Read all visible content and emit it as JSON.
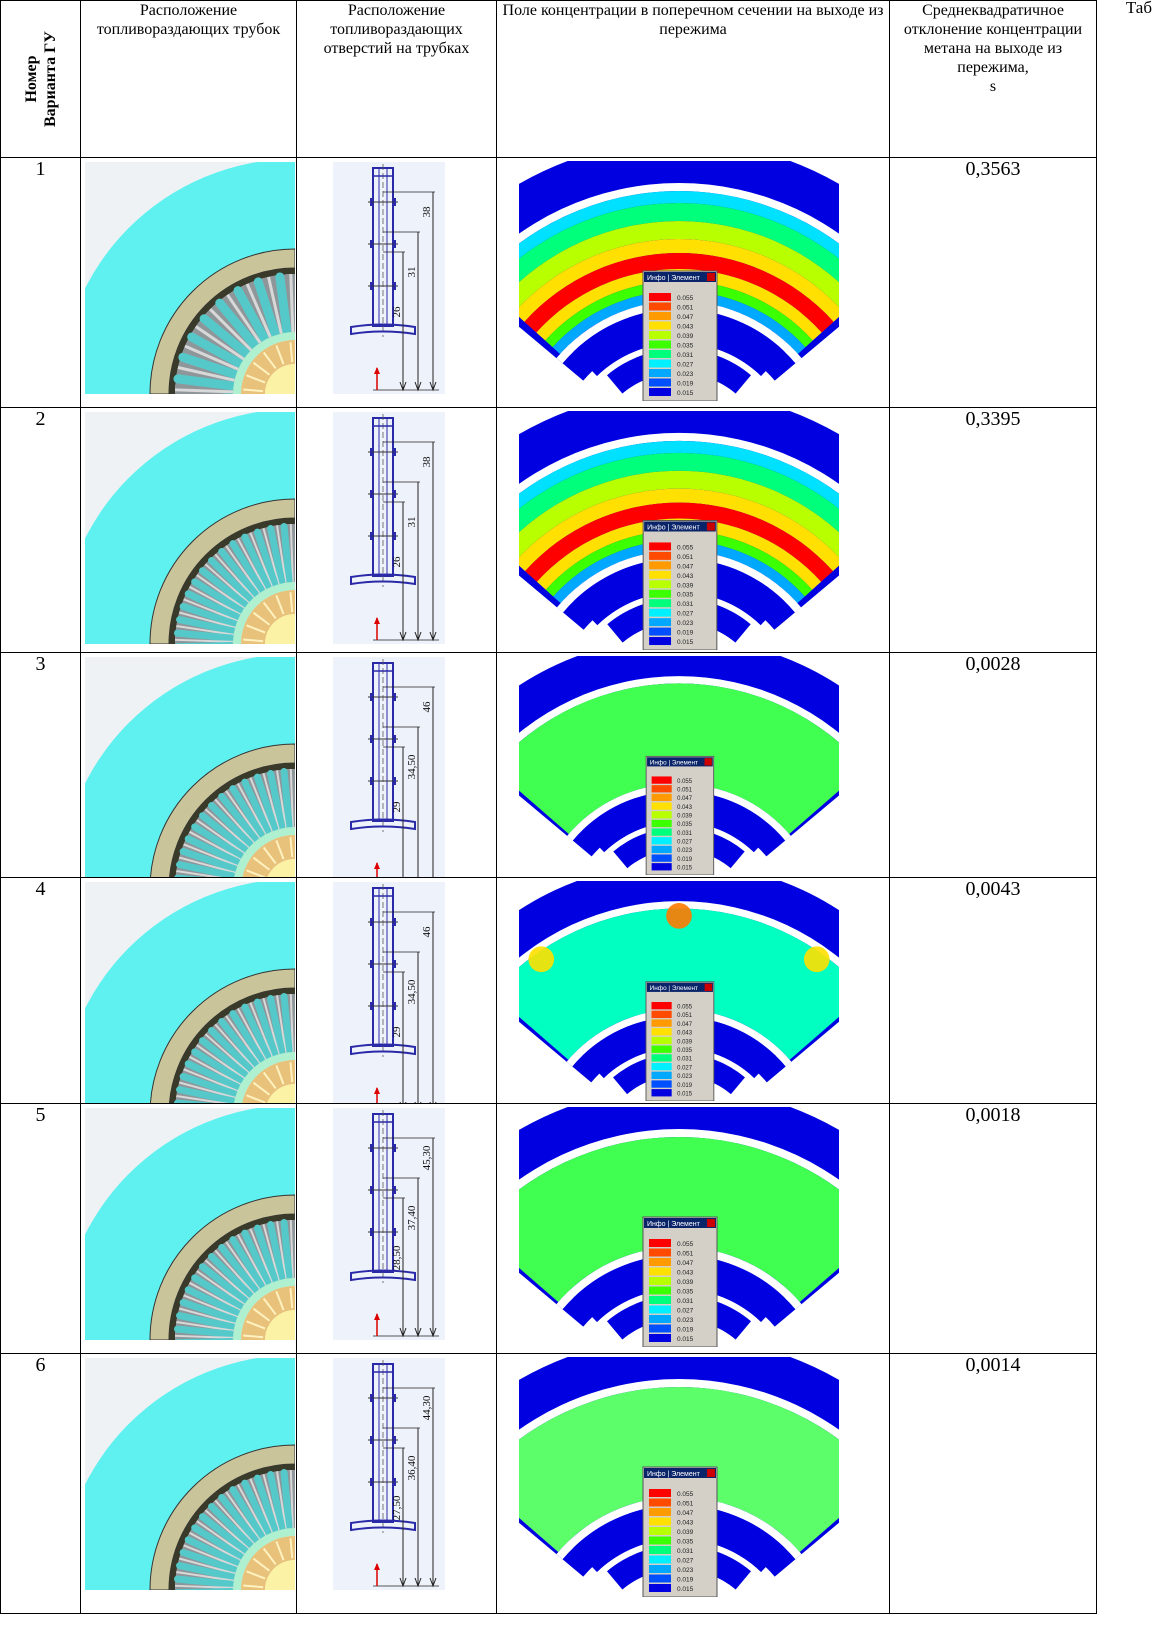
{
  "corner_label": "Таб",
  "headers": {
    "variant_number_line1": "Номер",
    "variant_number_line2": "Варианта ГУ",
    "tube_layout": "Расположение топливораздающих трубок",
    "hole_layout": "Расположение топливораздающих отверстий на трубках",
    "concentration_field": "Поле концентрации в поперечном сечении на выходе из пережима",
    "rms_deviation": "Среднеквадратичное отклонение концентрации метана на выходе из пережима,",
    "rms_symbol": "s"
  },
  "legend_window_title": "Инфо | Элемент",
  "legend_values": [
    "0.055",
    "0.051",
    "0.047",
    "0.043",
    "0.039",
    "0.035",
    "0.031",
    "0.027",
    "0.023",
    "0.019",
    "0.015"
  ],
  "legend_colors": [
    "#ff0000",
    "#ff4a00",
    "#ff9a00",
    "#ffe000",
    "#b8ff00",
    "#3cff00",
    "#00ff7a",
    "#00f0ff",
    "#00a8ff",
    "#0050ff",
    "#0000e0"
  ],
  "rows": [
    {
      "number": "1",
      "sigma": "0,3563",
      "dims": [
        "38",
        "31",
        "26"
      ],
      "spokes": 9,
      "field": "strong"
    },
    {
      "number": "2",
      "sigma": "0,3395",
      "dims": [
        "38",
        "31",
        "26"
      ],
      "spokes": 14,
      "field": "strong2"
    },
    {
      "number": "3",
      "sigma": "0,0028",
      "dims": [
        "46",
        "34,50",
        "29"
      ],
      "spokes": 14,
      "field": "green"
    },
    {
      "number": "4",
      "sigma": "0,0043",
      "dims": [
        "46",
        "34,50",
        "29"
      ],
      "spokes": 14,
      "field": "cyan"
    },
    {
      "number": "5",
      "sigma": "0,0018",
      "dims": [
        "45,30",
        "37,40",
        "28,50"
      ],
      "spokes": 14,
      "field": "green"
    },
    {
      "number": "6",
      "sigma": "0,0014",
      "dims": [
        "44,30",
        "36,40",
        "27,50"
      ],
      "spokes": 14,
      "field": "green2"
    }
  ]
}
